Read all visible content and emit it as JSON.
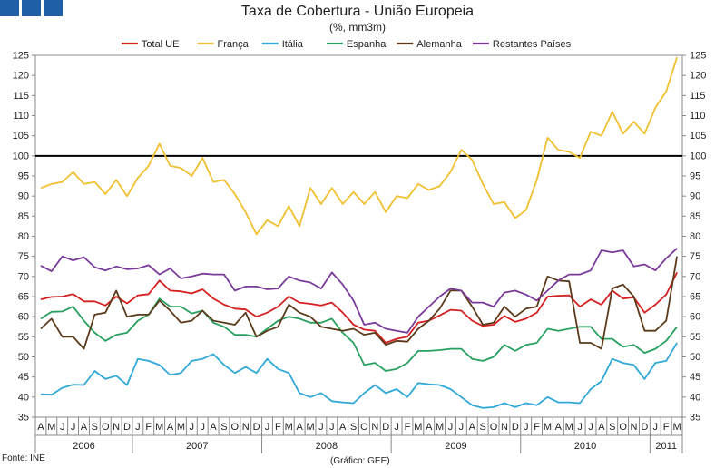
{
  "chart_data": {
    "type": "line",
    "title": "Taxa de Cobertura - União Europeia",
    "subtitle": "(%, mm3m)",
    "xlabel": "",
    "ylabel": "",
    "ylim": [
      35,
      125
    ],
    "yticks": [
      35,
      40,
      45,
      50,
      55,
      60,
      65,
      70,
      75,
      80,
      85,
      90,
      95,
      100,
      105,
      110,
      115,
      120,
      125
    ],
    "reference_line": 100,
    "legend_position": "top-center",
    "months": [
      "A",
      "M",
      "J",
      "J",
      "A",
      "S",
      "O",
      "N",
      "D",
      "J",
      "F",
      "M",
      "A",
      "M",
      "J",
      "J",
      "A",
      "S",
      "O",
      "N",
      "D",
      "J",
      "F",
      "M",
      "A",
      "M",
      "J",
      "J",
      "A",
      "S",
      "O",
      "N",
      "D",
      "J",
      "F",
      "M",
      "A",
      "M",
      "J",
      "J",
      "A",
      "S",
      "O",
      "N",
      "D",
      "J",
      "F",
      "M",
      "A",
      "M",
      "J",
      "J",
      "A",
      "S",
      "O",
      "N",
      "D",
      "J",
      "F",
      "M"
    ],
    "years": [
      {
        "label": "2006",
        "start": 0,
        "count": 9
      },
      {
        "label": "2007",
        "start": 9,
        "count": 12
      },
      {
        "label": "2008",
        "start": 21,
        "count": 12
      },
      {
        "label": "2009",
        "start": 33,
        "count": 12
      },
      {
        "label": "2010",
        "start": 45,
        "count": 12
      },
      {
        "label": "2011",
        "start": 57,
        "count": 3
      }
    ],
    "series": [
      {
        "name": "Total UE",
        "color": "#d42020",
        "values": [
          64.3,
          64.9,
          65.0,
          65.6,
          63.8,
          63.8,
          62.8,
          65.0,
          63.3,
          65.3,
          65.6,
          69.0,
          66.5,
          66.3,
          65.8,
          66.8,
          64.5,
          63.0,
          62.0,
          61.8,
          60.0,
          61.0,
          62.5,
          65.0,
          63.5,
          63.2,
          62.8,
          63.5,
          61.0,
          58.0,
          56.8,
          56.5,
          53.5,
          54.5,
          55.0,
          58.5,
          59.0,
          60.3,
          61.7,
          61.5,
          59.0,
          57.7,
          58.0,
          60.2,
          58.7,
          59.5,
          61.0,
          65.0,
          65.2,
          65.3,
          62.5,
          64.3,
          63.0,
          66.5,
          64.5,
          64.8,
          61.0,
          63.0,
          65.5,
          71.0
        ]
      },
      {
        "name": "França",
        "color": "#f0c030",
        "values": [
          92.0,
          93.0,
          93.5,
          96.0,
          93.0,
          93.5,
          90.5,
          94.0,
          90.0,
          94.5,
          97.5,
          103.0,
          97.5,
          97.0,
          95.0,
          99.5,
          93.5,
          94.0,
          90.5,
          86.0,
          80.5,
          84.0,
          82.5,
          87.5,
          82.5,
          92.0,
          88.0,
          92.0,
          88.0,
          91.0,
          88.0,
          91.0,
          86.0,
          90.0,
          89.5,
          93.0,
          91.5,
          92.5,
          96.0,
          101.5,
          99.0,
          93.0,
          88.0,
          88.5,
          84.5,
          86.5,
          94.0,
          104.5,
          101.5,
          101.0,
          99.5,
          106.0,
          105.0,
          111.0,
          105.5,
          108.5,
          105.5,
          112.0,
          116.0,
          124.5
        ]
      },
      {
        "name": "Itália",
        "color": "#30a8d8",
        "values": [
          40.7,
          40.6,
          42.3,
          43.1,
          43.0,
          46.5,
          44.5,
          45.3,
          43.0,
          49.5,
          49.0,
          48.0,
          45.5,
          46.0,
          49.0,
          49.5,
          50.7,
          48.0,
          46.0,
          47.5,
          46.0,
          49.5,
          47.0,
          46.0,
          41.0,
          40.0,
          41.0,
          39.0,
          38.7,
          38.5,
          41.0,
          43.0,
          41.0,
          42.0,
          40.0,
          43.5,
          43.2,
          43.0,
          42.0,
          40.0,
          38.0,
          37.3,
          37.5,
          38.5,
          37.5,
          38.5,
          38.0,
          40.0,
          38.7,
          38.7,
          38.5,
          42.0,
          44.0,
          49.5,
          48.5,
          48.0,
          44.5,
          48.5,
          49.0,
          53.5
        ]
      },
      {
        "name": "Espanha",
        "color": "#28a060",
        "values": [
          59.5,
          61.2,
          61.3,
          62.5,
          59.0,
          56.0,
          54.0,
          55.5,
          56.0,
          59.0,
          60.5,
          64.5,
          62.5,
          62.5,
          60.8,
          61.5,
          58.5,
          57.5,
          55.5,
          55.5,
          55.0,
          57.0,
          59.0,
          60.0,
          59.5,
          58.5,
          58.5,
          59.5,
          56.0,
          53.5,
          48.0,
          48.5,
          46.5,
          47.0,
          48.5,
          51.5,
          51.5,
          51.7,
          52.0,
          52.0,
          49.5,
          49.0,
          50.0,
          53.0,
          51.5,
          53.0,
          53.5,
          57.0,
          56.5,
          57.0,
          57.5,
          57.5,
          54.5,
          54.5,
          52.5,
          53.0,
          51.0,
          52.0,
          54.0,
          57.5
        ]
      },
      {
        "name": "Alemanha",
        "color": "#5a3a1a",
        "values": [
          57.0,
          59.5,
          55.0,
          55.0,
          52.0,
          60.5,
          61.0,
          66.5,
          60.0,
          60.5,
          60.5,
          64.0,
          61.5,
          58.5,
          59.0,
          61.5,
          59.0,
          58.5,
          58.0,
          61.0,
          55.0,
          56.5,
          57.5,
          63.0,
          61.0,
          60.0,
          57.5,
          57.0,
          56.5,
          57.0,
          55.5,
          56.0,
          53.0,
          54.0,
          53.8,
          57.0,
          59.0,
          62.0,
          66.5,
          66.5,
          62.5,
          58.0,
          58.5,
          62.5,
          60.0,
          62.0,
          62.5,
          70.0,
          69.0,
          68.8,
          53.5,
          53.5,
          52.0,
          67.0,
          68.0,
          65.0,
          56.5,
          56.5,
          59.0,
          75.0
        ]
      },
      {
        "name": "Restantes Países",
        "color": "#7a3a9a",
        "values": [
          72.7,
          71.3,
          75.0,
          74.0,
          74.8,
          72.3,
          71.5,
          72.5,
          71.8,
          72.0,
          72.8,
          70.5,
          72.0,
          69.5,
          70.0,
          70.7,
          70.5,
          70.5,
          66.5,
          67.5,
          67.5,
          66.8,
          67.0,
          70.0,
          69.0,
          68.5,
          67.0,
          71.0,
          68.0,
          64.0,
          58.0,
          58.5,
          57.0,
          56.5,
          56.0,
          60.0,
          62.5,
          65.0,
          67.0,
          66.5,
          63.5,
          63.5,
          62.5,
          66.0,
          66.5,
          65.5,
          64.0,
          66.5,
          69.0,
          70.5,
          70.5,
          71.5,
          76.5,
          76.0,
          76.5,
          72.5,
          73.0,
          71.5,
          74.5,
          77.0
        ]
      }
    ]
  },
  "header": {
    "title": "Taxa de Cobertura - União Europeia",
    "subtitle": "(%, mm3m)"
  },
  "footer": {
    "source": "Fonte: INE",
    "credit": "(Gráfico: GEE)"
  }
}
